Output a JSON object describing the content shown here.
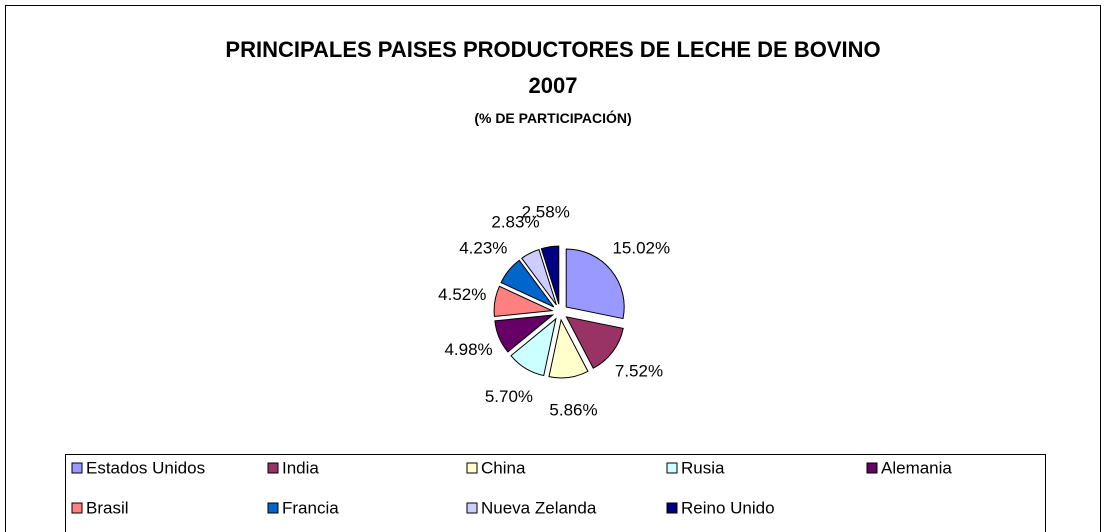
{
  "chart_data": {
    "type": "pie",
    "title": "PRINCIPALES PAISES PRODUCTORES DE LECHE DE BOVINO 2007",
    "subtitle": "(% DE PARTICIPACIÓN)",
    "categories": [
      "Estados Unidos",
      "India",
      "China",
      "Rusia",
      "Alemania",
      "Brasil",
      "Francia",
      "Nueva Zelanda",
      "Reino Unido"
    ],
    "values": [
      15.02,
      7.52,
      5.86,
      5.7,
      4.98,
      4.52,
      4.23,
      2.83,
      2.58
    ],
    "value_labels": [
      "15.02%",
      "7.52%",
      "5.86%",
      "5.70%",
      "4.98%",
      "4.52%",
      "4.23%",
      "2.83%",
      "2.58%"
    ],
    "colors": [
      "#9999ff",
      "#993366",
      "#ffffcc",
      "#ccffff",
      "#660066",
      "#ff8080",
      "#0066cc",
      "#ccccff",
      "#000080"
    ]
  }
}
